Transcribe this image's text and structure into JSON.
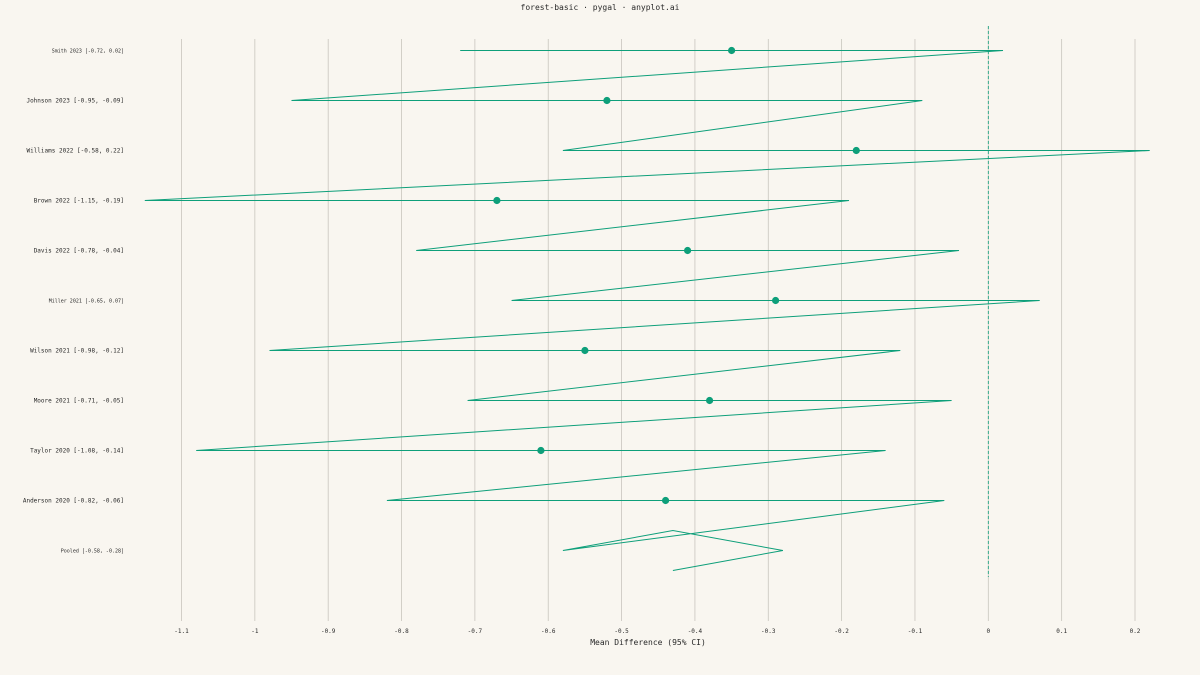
{
  "title": "forest-basic · pygal · anyplot.ai",
  "colors": {
    "background": "#f9f6f0",
    "accent": "#0e9f7a",
    "grid": "#c8c5bd",
    "text": "#2a2a2a"
  },
  "chart_data": {
    "type": "forest",
    "xlabel": "Mean Difference (95% CI)",
    "xlim": [
      -1.2,
      0.25
    ],
    "x_ticks": [
      -1.1,
      -1,
      -0.9,
      -0.8,
      -0.7,
      -0.6,
      -0.5,
      -0.4,
      -0.3,
      -0.2,
      -0.1,
      0,
      0.1,
      0.2
    ],
    "x_tick_labels": [
      "-1.1",
      "-1",
      "-0.9",
      "-0.8",
      "-0.7",
      "-0.6",
      "-0.5",
      "-0.4",
      "-0.3",
      "-0.2",
      "-0.1",
      "0",
      "0.1",
      "0.2"
    ],
    "reference_line": 0,
    "grid": true,
    "studies": [
      {
        "label": "Smith 2023 [-0.72, 0.02]",
        "estimate": -0.35,
        "lower": -0.72,
        "upper": 0.02,
        "small": true
      },
      {
        "label": "Johnson 2023 [-0.95, -0.09]",
        "estimate": -0.52,
        "lower": -0.95,
        "upper": -0.09,
        "small": false
      },
      {
        "label": "Williams 2022 [-0.58, 0.22]",
        "estimate": -0.18,
        "lower": -0.58,
        "upper": 0.22,
        "small": false
      },
      {
        "label": "Brown 2022 [-1.15, -0.19]",
        "estimate": -0.67,
        "lower": -1.15,
        "upper": -0.19,
        "small": false
      },
      {
        "label": "Davis 2022 [-0.78, -0.04]",
        "estimate": -0.41,
        "lower": -0.78,
        "upper": -0.04,
        "small": false
      },
      {
        "label": "Miller 2021 [-0.65, 0.07]",
        "estimate": -0.29,
        "lower": -0.65,
        "upper": 0.07,
        "small": true
      },
      {
        "label": "Wilson 2021 [-0.98, -0.12]",
        "estimate": -0.55,
        "lower": -0.98,
        "upper": -0.12,
        "small": false
      },
      {
        "label": "Moore 2021 [-0.71, -0.05]",
        "estimate": -0.38,
        "lower": -0.71,
        "upper": -0.05,
        "small": false
      },
      {
        "label": "Taylor 2020 [-1.08, -0.14]",
        "estimate": -0.61,
        "lower": -1.08,
        "upper": -0.14,
        "small": false
      },
      {
        "label": "Anderson 2020 [-0.82, -0.06]",
        "estimate": -0.44,
        "lower": -0.82,
        "upper": -0.06,
        "small": false
      }
    ],
    "pooled": {
      "label": "Pooled [-0.58, -0.28]",
      "estimate": -0.43,
      "lower": -0.58,
      "upper": -0.28,
      "small": true
    }
  }
}
